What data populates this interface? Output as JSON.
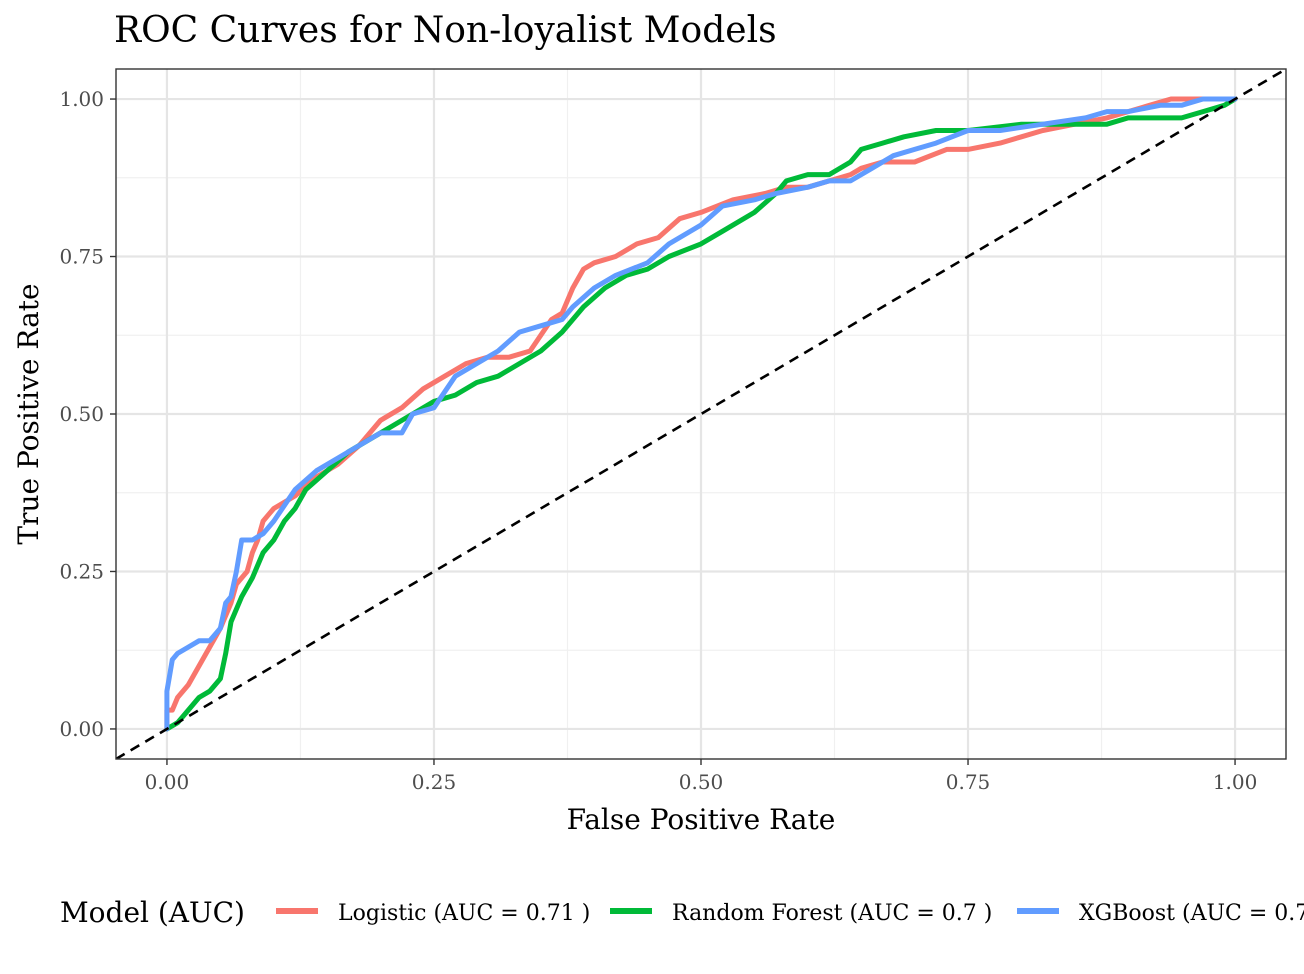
{
  "chart_data": {
    "type": "line",
    "title": "ROC Curves for Non-loyalist Models",
    "xlabel": "False Positive Rate",
    "ylabel": "True Positive Rate",
    "xlim": [
      -0.0477,
      1.0477
    ],
    "ylim": [
      -0.0477,
      1.0477
    ],
    "x_ticks": [
      0.0,
      0.25,
      0.5,
      0.75,
      1.0
    ],
    "y_ticks": [
      0.0,
      0.25,
      0.5,
      0.75,
      1.0
    ],
    "x_tick_labels": [
      "0.00",
      "0.25",
      "0.50",
      "0.75",
      "1.00"
    ],
    "y_tick_labels": [
      "0.00",
      "0.25",
      "0.50",
      "0.75",
      "1.00"
    ],
    "grid": true,
    "reference_line": {
      "style": "dashed",
      "color": "#000000",
      "x": [
        -0.0477,
        1.0477
      ],
      "y": [
        -0.0477,
        1.0477
      ]
    },
    "legend": {
      "title": "Model (AUC)",
      "position": "bottom"
    },
    "series": [
      {
        "name": "Logistic (AUC = 0.71 )",
        "color": "#F8766D",
        "x": [
          0.0,
          0.0,
          0.005,
          0.01,
          0.02,
          0.03,
          0.04,
          0.05,
          0.06,
          0.065,
          0.075,
          0.08,
          0.085,
          0.09,
          0.095,
          0.1,
          0.12,
          0.14,
          0.16,
          0.18,
          0.2,
          0.22,
          0.24,
          0.26,
          0.28,
          0.3,
          0.32,
          0.34,
          0.36,
          0.37,
          0.38,
          0.39,
          0.4,
          0.42,
          0.44,
          0.46,
          0.48,
          0.5,
          0.53,
          0.56,
          0.58,
          0.6,
          0.62,
          0.64,
          0.65,
          0.67,
          0.7,
          0.73,
          0.75,
          0.78,
          0.8,
          0.82,
          0.85,
          0.88,
          0.9,
          0.92,
          0.94,
          0.96,
          1.0
        ],
        "y": [
          0.0,
          0.03,
          0.03,
          0.05,
          0.07,
          0.1,
          0.13,
          0.16,
          0.2,
          0.23,
          0.25,
          0.28,
          0.3,
          0.33,
          0.34,
          0.35,
          0.37,
          0.4,
          0.42,
          0.45,
          0.49,
          0.51,
          0.54,
          0.56,
          0.58,
          0.59,
          0.59,
          0.6,
          0.65,
          0.66,
          0.7,
          0.73,
          0.74,
          0.75,
          0.77,
          0.78,
          0.81,
          0.82,
          0.84,
          0.85,
          0.86,
          0.86,
          0.87,
          0.88,
          0.89,
          0.9,
          0.9,
          0.92,
          0.92,
          0.93,
          0.94,
          0.95,
          0.96,
          0.97,
          0.98,
          0.99,
          1.0,
          1.0,
          1.0
        ]
      },
      {
        "name": "Random Forest (AUC = 0.7 )",
        "color": "#00BA38",
        "x": [
          0.0,
          0.01,
          0.02,
          0.03,
          0.04,
          0.05,
          0.055,
          0.06,
          0.07,
          0.08,
          0.09,
          0.1,
          0.11,
          0.12,
          0.13,
          0.15,
          0.17,
          0.19,
          0.21,
          0.23,
          0.25,
          0.27,
          0.29,
          0.31,
          0.33,
          0.35,
          0.37,
          0.39,
          0.41,
          0.43,
          0.45,
          0.47,
          0.5,
          0.52,
          0.55,
          0.57,
          0.58,
          0.6,
          0.62,
          0.64,
          0.65,
          0.67,
          0.69,
          0.72,
          0.75,
          0.8,
          0.85,
          0.88,
          0.9,
          0.93,
          0.95,
          0.97,
          0.99,
          1.0
        ],
        "y": [
          0.0,
          0.01,
          0.03,
          0.05,
          0.06,
          0.08,
          0.12,
          0.17,
          0.21,
          0.24,
          0.28,
          0.3,
          0.33,
          0.35,
          0.38,
          0.41,
          0.44,
          0.46,
          0.48,
          0.5,
          0.52,
          0.53,
          0.55,
          0.56,
          0.58,
          0.6,
          0.63,
          0.67,
          0.7,
          0.72,
          0.73,
          0.75,
          0.77,
          0.79,
          0.82,
          0.85,
          0.87,
          0.88,
          0.88,
          0.9,
          0.92,
          0.93,
          0.94,
          0.95,
          0.95,
          0.96,
          0.96,
          0.96,
          0.97,
          0.97,
          0.97,
          0.98,
          0.99,
          1.0
        ]
      },
      {
        "name": "XGBoost (AUC = 0.7",
        "color": "#619CFF",
        "x": [
          0.0,
          0.0,
          0.002,
          0.005,
          0.01,
          0.02,
          0.03,
          0.04,
          0.05,
          0.055,
          0.06,
          0.065,
          0.07,
          0.075,
          0.08,
          0.09,
          0.1,
          0.12,
          0.14,
          0.16,
          0.18,
          0.2,
          0.22,
          0.23,
          0.25,
          0.27,
          0.29,
          0.31,
          0.33,
          0.35,
          0.37,
          0.38,
          0.4,
          0.42,
          0.45,
          0.47,
          0.5,
          0.52,
          0.55,
          0.57,
          0.6,
          0.62,
          0.64,
          0.66,
          0.68,
          0.7,
          0.72,
          0.75,
          0.78,
          0.82,
          0.86,
          0.88,
          0.9,
          0.93,
          0.95,
          0.97,
          1.0
        ],
        "y": [
          0.0,
          0.06,
          0.08,
          0.11,
          0.12,
          0.13,
          0.14,
          0.14,
          0.16,
          0.2,
          0.21,
          0.25,
          0.3,
          0.3,
          0.3,
          0.31,
          0.33,
          0.38,
          0.41,
          0.43,
          0.45,
          0.47,
          0.47,
          0.5,
          0.51,
          0.56,
          0.58,
          0.6,
          0.63,
          0.64,
          0.65,
          0.67,
          0.7,
          0.72,
          0.74,
          0.77,
          0.8,
          0.83,
          0.84,
          0.85,
          0.86,
          0.87,
          0.87,
          0.89,
          0.91,
          0.92,
          0.93,
          0.95,
          0.95,
          0.96,
          0.97,
          0.98,
          0.98,
          0.99,
          0.99,
          1.0,
          1.0
        ]
      }
    ]
  }
}
